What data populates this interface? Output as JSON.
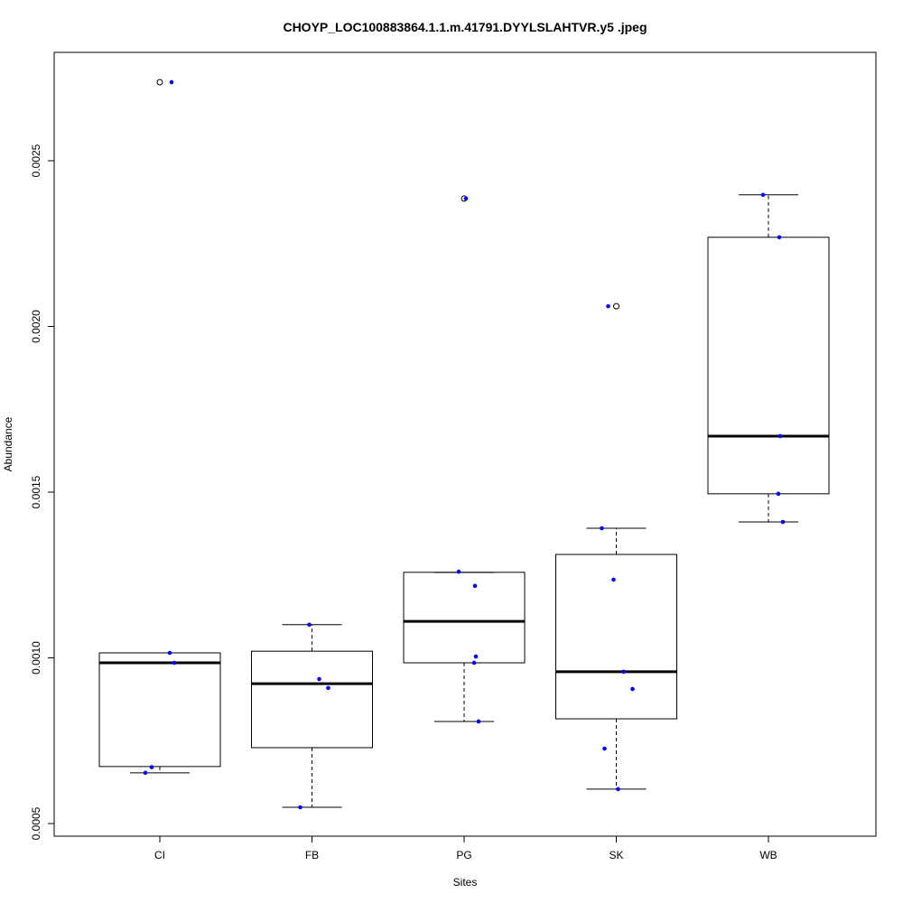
{
  "chart_data": {
    "type": "boxplot",
    "title": "CHOYP_LOC100883864.1.1.m.41791.DYYLSLAHTVR.y5 .jpeg",
    "xlabel": "Sites",
    "ylabel": "Abundance",
    "ylim": [
      0.00045,
      0.00282
    ],
    "yticks": [
      0.0005,
      0.001,
      0.0015,
      0.002,
      0.0025
    ],
    "ytick_labels": [
      "0.0005",
      "0.0010",
      "0.0015",
      "0.0020",
      "0.0025"
    ],
    "categories": [
      "CI",
      "FB",
      "PG",
      "SK",
      "WB"
    ],
    "boxes": [
      {
        "name": "CI",
        "whisker_low": 0.000653,
        "q1": 0.000672,
        "median": 0.000985,
        "q3": 0.001015,
        "whisker_high": 0.001015,
        "outliers": [
          0.002737
        ]
      },
      {
        "name": "FB",
        "whisker_low": 0.000549,
        "q1": 0.000729,
        "median": 0.000922,
        "q3": 0.00102,
        "whisker_high": 0.0011,
        "outliers": []
      },
      {
        "name": "PG",
        "whisker_low": 0.000808,
        "q1": 0.000985,
        "median": 0.00111,
        "q3": 0.001258,
        "whisker_high": 0.001258,
        "outliers": [
          0.002386
        ]
      },
      {
        "name": "SK",
        "whisker_low": 0.000604,
        "q1": 0.000816,
        "median": 0.000958,
        "q3": 0.001312,
        "whisker_high": 0.001391,
        "outliers": [
          0.002061
        ]
      },
      {
        "name": "WB",
        "whisker_low": 0.00141,
        "q1": 0.001495,
        "median": 0.001669,
        "q3": 0.002269,
        "whisker_high": 0.002397,
        "outliers": []
      }
    ],
    "points": [
      {
        "site": "CI",
        "values": [
          0.002737,
          0.001015,
          0.000985,
          0.00067,
          0.000653
        ]
      },
      {
        "site": "FB",
        "values": [
          0.0011,
          0.000936,
          0.000909,
          0.000549
        ]
      },
      {
        "site": "PG",
        "values": [
          0.002386,
          0.00126,
          0.001217,
          0.001004,
          0.000985,
          0.000808
        ]
      },
      {
        "site": "SK",
        "values": [
          0.002061,
          0.001391,
          0.001236,
          0.000958,
          0.000906,
          0.000726,
          0.000604
        ]
      },
      {
        "site": "WB",
        "values": [
          0.002397,
          0.002269,
          0.001669,
          0.001495,
          0.00141
        ]
      }
    ],
    "point_color": "#0000ff",
    "grid": false,
    "legend": "none"
  }
}
